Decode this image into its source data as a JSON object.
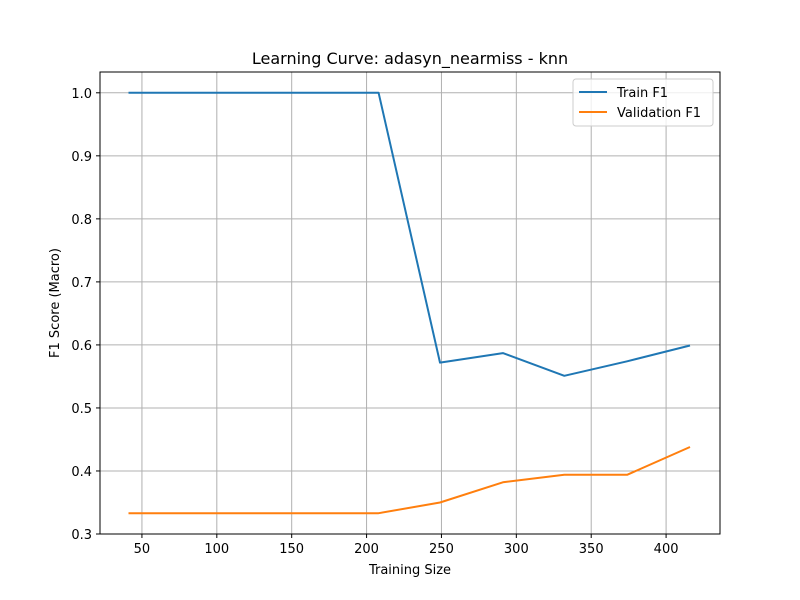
{
  "chart_data": {
    "type": "line",
    "title": "Learning Curve: adasyn_nearmiss - knn",
    "xlabel": "Training Size",
    "ylabel": "F1 Score (Macro)",
    "xlim": [
      22,
      436
    ],
    "ylim": [
      0.3,
      1.033
    ],
    "xticks": [
      50,
      100,
      150,
      200,
      250,
      300,
      350,
      400
    ],
    "yticks": [
      0.3,
      0.4,
      0.5,
      0.6,
      0.7,
      0.8,
      0.9,
      1.0
    ],
    "ytick_labels": [
      "0.3",
      "0.4",
      "0.5",
      "0.6",
      "0.7",
      "0.8",
      "0.9",
      "1.0"
    ],
    "grid": true,
    "legend_position": "top-right",
    "x": [
      41,
      83,
      124,
      166,
      208,
      249,
      291,
      332,
      374,
      416
    ],
    "series": [
      {
        "name": "Train F1",
        "color": "#1f77b4",
        "values": [
          1.0,
          1.0,
          1.0,
          1.0,
          1.0,
          0.572,
          0.587,
          0.551,
          0.574,
          0.599
        ]
      },
      {
        "name": "Validation F1",
        "color": "#ff7f0e",
        "values": [
          0.333,
          0.333,
          0.333,
          0.333,
          0.333,
          0.35,
          0.382,
          0.394,
          0.394,
          0.438
        ]
      }
    ]
  }
}
